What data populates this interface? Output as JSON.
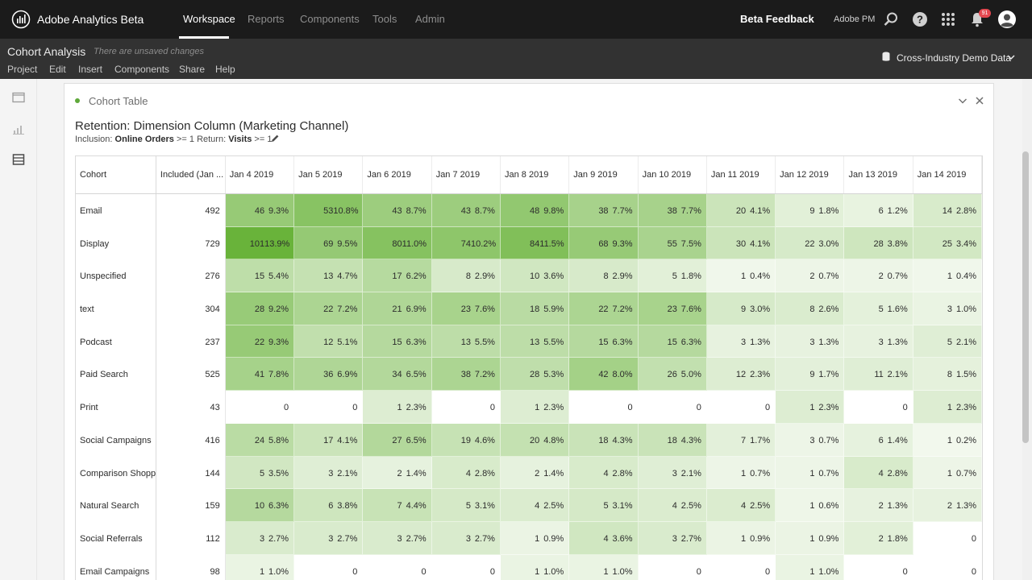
{
  "app": {
    "name": "Adobe Analytics Beta"
  },
  "nav": [
    "Workspace",
    "Reports",
    "Components",
    "Tools",
    "Admin"
  ],
  "topbar": {
    "feedback": "Beta Feedback",
    "org": "Adobe PM",
    "notifications": "91"
  },
  "project": {
    "title": "Cohort Analysis",
    "status": "There are unsaved changes",
    "menu": [
      "Project",
      "Edit",
      "Insert",
      "Components",
      "Share",
      "Help"
    ],
    "report_suite": "Cross-Industry Demo Data"
  },
  "panel": {
    "title": "Cohort Table",
    "viz_title": "Retention: Dimension Column (Marketing Channel)",
    "inclusion_label": "Inclusion:",
    "inclusion_metric": "Online Orders",
    "inclusion_cond": ">= 1",
    "return_label": "Return:",
    "return_metric": "Visits",
    "return_cond": ">= 1"
  },
  "table": {
    "headers": [
      "Cohort",
      "Included (Jan ...",
      "Jan 4 2019",
      "Jan 5 2019",
      "Jan 6 2019",
      "Jan 7 2019",
      "Jan 8 2019",
      "Jan 9 2019",
      "Jan 10 2019",
      "Jan 11 2019",
      "Jan 12 2019",
      "Jan 13 2019",
      "Jan 14 2019"
    ],
    "rows": [
      {
        "cohort": "Email",
        "included": "492",
        "cells": [
          [
            "46",
            "9.3%"
          ],
          [
            "53",
            "10.8%"
          ],
          [
            "43",
            "8.7%"
          ],
          [
            "43",
            "8.7%"
          ],
          [
            "48",
            "9.8%"
          ],
          [
            "38",
            "7.7%"
          ],
          [
            "38",
            "7.7%"
          ],
          [
            "20",
            "4.1%"
          ],
          [
            "9",
            "1.8%"
          ],
          [
            "6",
            "1.2%"
          ],
          [
            "14",
            "2.8%"
          ]
        ]
      },
      {
        "cohort": "Display",
        "included": "729",
        "cells": [
          [
            "101",
            "13.9%"
          ],
          [
            "69",
            "9.5%"
          ],
          [
            "80",
            "11.0%"
          ],
          [
            "74",
            "10.2%"
          ],
          [
            "84",
            "11.5%"
          ],
          [
            "68",
            "9.3%"
          ],
          [
            "55",
            "7.5%"
          ],
          [
            "30",
            "4.1%"
          ],
          [
            "22",
            "3.0%"
          ],
          [
            "28",
            "3.8%"
          ],
          [
            "25",
            "3.4%"
          ]
        ]
      },
      {
        "cohort": "Unspecified",
        "included": "276",
        "cells": [
          [
            "15",
            "5.4%"
          ],
          [
            "13",
            "4.7%"
          ],
          [
            "17",
            "6.2%"
          ],
          [
            "8",
            "2.9%"
          ],
          [
            "10",
            "3.6%"
          ],
          [
            "8",
            "2.9%"
          ],
          [
            "5",
            "1.8%"
          ],
          [
            "1",
            "0.4%"
          ],
          [
            "2",
            "0.7%"
          ],
          [
            "2",
            "0.7%"
          ],
          [
            "1",
            "0.4%"
          ]
        ]
      },
      {
        "cohort": "text",
        "included": "304",
        "cells": [
          [
            "28",
            "9.2%"
          ],
          [
            "22",
            "7.2%"
          ],
          [
            "21",
            "6.9%"
          ],
          [
            "23",
            "7.6%"
          ],
          [
            "18",
            "5.9%"
          ],
          [
            "22",
            "7.2%"
          ],
          [
            "23",
            "7.6%"
          ],
          [
            "9",
            "3.0%"
          ],
          [
            "8",
            "2.6%"
          ],
          [
            "5",
            "1.6%"
          ],
          [
            "3",
            "1.0%"
          ]
        ]
      },
      {
        "cohort": "Podcast",
        "included": "237",
        "cells": [
          [
            "22",
            "9.3%"
          ],
          [
            "12",
            "5.1%"
          ],
          [
            "15",
            "6.3%"
          ],
          [
            "13",
            "5.5%"
          ],
          [
            "13",
            "5.5%"
          ],
          [
            "15",
            "6.3%"
          ],
          [
            "15",
            "6.3%"
          ],
          [
            "3",
            "1.3%"
          ],
          [
            "3",
            "1.3%"
          ],
          [
            "3",
            "1.3%"
          ],
          [
            "5",
            "2.1%"
          ]
        ]
      },
      {
        "cohort": "Paid Search",
        "included": "525",
        "cells": [
          [
            "41",
            "7.8%"
          ],
          [
            "36",
            "6.9%"
          ],
          [
            "34",
            "6.5%"
          ],
          [
            "38",
            "7.2%"
          ],
          [
            "28",
            "5.3%"
          ],
          [
            "42",
            "8.0%"
          ],
          [
            "26",
            "5.0%"
          ],
          [
            "12",
            "2.3%"
          ],
          [
            "9",
            "1.7%"
          ],
          [
            "11",
            "2.1%"
          ],
          [
            "8",
            "1.5%"
          ]
        ]
      },
      {
        "cohort": "Print",
        "included": "43",
        "cells": [
          [
            "0",
            ""
          ],
          [
            "0",
            ""
          ],
          [
            "1",
            "2.3%"
          ],
          [
            "0",
            ""
          ],
          [
            "1",
            "2.3%"
          ],
          [
            "0",
            ""
          ],
          [
            "0",
            ""
          ],
          [
            "0",
            ""
          ],
          [
            "1",
            "2.3%"
          ],
          [
            "0",
            ""
          ],
          [
            "1",
            "2.3%"
          ]
        ]
      },
      {
        "cohort": "Social Campaigns",
        "included": "416",
        "cells": [
          [
            "24",
            "5.8%"
          ],
          [
            "17",
            "4.1%"
          ],
          [
            "27",
            "6.5%"
          ],
          [
            "19",
            "4.6%"
          ],
          [
            "20",
            "4.8%"
          ],
          [
            "18",
            "4.3%"
          ],
          [
            "18",
            "4.3%"
          ],
          [
            "7",
            "1.7%"
          ],
          [
            "3",
            "0.7%"
          ],
          [
            "6",
            "1.4%"
          ],
          [
            "1",
            "0.2%"
          ]
        ]
      },
      {
        "cohort": "Comparison Shopp",
        "included": "144",
        "cells": [
          [
            "5",
            "3.5%"
          ],
          [
            "3",
            "2.1%"
          ],
          [
            "2",
            "1.4%"
          ],
          [
            "4",
            "2.8%"
          ],
          [
            "2",
            "1.4%"
          ],
          [
            "4",
            "2.8%"
          ],
          [
            "3",
            "2.1%"
          ],
          [
            "1",
            "0.7%"
          ],
          [
            "1",
            "0.7%"
          ],
          [
            "4",
            "2.8%"
          ],
          [
            "1",
            "0.7%"
          ]
        ]
      },
      {
        "cohort": "Natural Search",
        "included": "159",
        "cells": [
          [
            "10",
            "6.3%"
          ],
          [
            "6",
            "3.8%"
          ],
          [
            "7",
            "4.4%"
          ],
          [
            "5",
            "3.1%"
          ],
          [
            "4",
            "2.5%"
          ],
          [
            "5",
            "3.1%"
          ],
          [
            "4",
            "2.5%"
          ],
          [
            "4",
            "2.5%"
          ],
          [
            "1",
            "0.6%"
          ],
          [
            "2",
            "1.3%"
          ],
          [
            "2",
            "1.3%"
          ]
        ]
      },
      {
        "cohort": "Social Referrals",
        "included": "112",
        "cells": [
          [
            "3",
            "2.7%"
          ],
          [
            "3",
            "2.7%"
          ],
          [
            "3",
            "2.7%"
          ],
          [
            "3",
            "2.7%"
          ],
          [
            "1",
            "0.9%"
          ],
          [
            "4",
            "3.6%"
          ],
          [
            "3",
            "2.7%"
          ],
          [
            "1",
            "0.9%"
          ],
          [
            "1",
            "0.9%"
          ],
          [
            "2",
            "1.8%"
          ],
          [
            "0",
            ""
          ]
        ]
      },
      {
        "cohort": "Email Campaigns",
        "included": "98",
        "cells": [
          [
            "1",
            "1.0%"
          ],
          [
            "0",
            ""
          ],
          [
            "0",
            ""
          ],
          [
            "0",
            ""
          ],
          [
            "1",
            "1.0%"
          ],
          [
            "1",
            "1.0%"
          ],
          [
            "0",
            ""
          ],
          [
            "0",
            ""
          ],
          [
            "1",
            "1.0%"
          ],
          [
            "0",
            ""
          ],
          [
            "0",
            ""
          ]
        ]
      }
    ]
  },
  "colors": {
    "heat_max": "#69b33a",
    "heat_min": "#f4f9f0"
  }
}
